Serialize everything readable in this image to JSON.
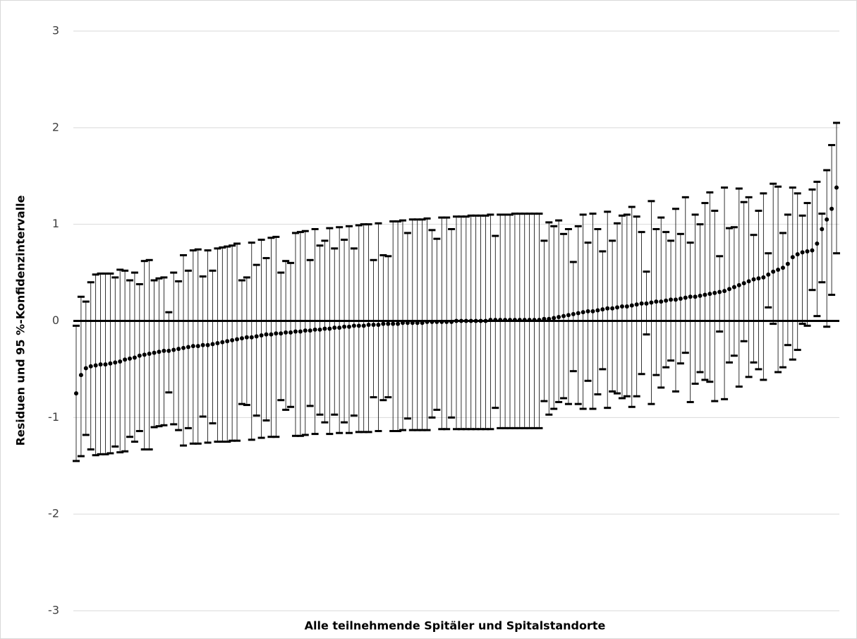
{
  "chart_data": {
    "type": "errorbar",
    "y_axis_label": "Residuen und 95 %-Konfidenzintervalle",
    "x_axis_label": "Alle teilnehmende Spitäler und Spitalstandorte",
    "ylim": [
      -3,
      3
    ],
    "yticks": [
      -3,
      -2,
      -1,
      0,
      1,
      2,
      3
    ],
    "grid": true,
    "color": "#000000",
    "grid_color": "#d9d9d9",
    "values": [
      -0.75,
      -0.56,
      -0.49,
      -0.47,
      -0.46,
      -0.45,
      -0.45,
      -0.44,
      -0.43,
      -0.42,
      -0.4,
      -0.39,
      -0.38,
      -0.36,
      -0.35,
      -0.34,
      -0.33,
      -0.32,
      -0.31,
      -0.31,
      -0.3,
      -0.29,
      -0.28,
      -0.27,
      -0.26,
      -0.26,
      -0.25,
      -0.25,
      -0.24,
      -0.23,
      -0.22,
      -0.21,
      -0.2,
      -0.19,
      -0.18,
      -0.17,
      -0.17,
      -0.16,
      -0.15,
      -0.14,
      -0.14,
      -0.13,
      -0.13,
      -0.12,
      -0.12,
      -0.11,
      -0.11,
      -0.1,
      -0.1,
      -0.09,
      -0.09,
      -0.08,
      -0.08,
      -0.07,
      -0.07,
      -0.06,
      -0.06,
      -0.05,
      -0.05,
      -0.05,
      -0.04,
      -0.04,
      -0.04,
      -0.03,
      -0.03,
      -0.03,
      -0.03,
      -0.02,
      -0.02,
      -0.02,
      -0.02,
      -0.02,
      -0.01,
      -0.01,
      -0.01,
      -0.01,
      -0.01,
      -0.01,
      0.0,
      0.0,
      0.0,
      0.0,
      0.0,
      0.0,
      0.0,
      0.01,
      0.01,
      0.01,
      0.01,
      0.01,
      0.01,
      0.01,
      0.01,
      0.01,
      0.01,
      0.01,
      0.02,
      0.02,
      0.03,
      0.04,
      0.05,
      0.06,
      0.07,
      0.08,
      0.09,
      0.1,
      0.1,
      0.11,
      0.12,
      0.13,
      0.13,
      0.14,
      0.15,
      0.15,
      0.16,
      0.17,
      0.18,
      0.18,
      0.19,
      0.2,
      0.2,
      0.21,
      0.22,
      0.22,
      0.23,
      0.24,
      0.25,
      0.25,
      0.26,
      0.27,
      0.28,
      0.29,
      0.3,
      0.31,
      0.33,
      0.35,
      0.37,
      0.39,
      0.41,
      0.43,
      0.44,
      0.45,
      0.48,
      0.51,
      0.53,
      0.55,
      0.59,
      0.66,
      0.69,
      0.71,
      0.72,
      0.73,
      0.8,
      0.95,
      1.05,
      1.16,
      1.38
    ],
    "lower": [
      -1.45,
      -1.4,
      -1.18,
      -1.33,
      -1.39,
      -1.38,
      -1.38,
      -1.37,
      -1.3,
      -1.36,
      -1.35,
      -1.2,
      -1.25,
      -1.14,
      -1.33,
      -1.33,
      -1.1,
      -1.09,
      -1.08,
      -0.74,
      -1.07,
      -1.13,
      -1.29,
      -1.11,
      -1.27,
      -1.27,
      -0.99,
      -1.26,
      -1.06,
      -1.25,
      -1.25,
      -1.25,
      -1.24,
      -1.24,
      -0.86,
      -0.87,
      -1.23,
      -0.98,
      -1.21,
      -1.03,
      -1.2,
      -1.2,
      -0.82,
      -0.92,
      -0.89,
      -1.19,
      -1.19,
      -1.18,
      -0.88,
      -1.17,
      -0.97,
      -1.05,
      -1.17,
      -0.97,
      -1.16,
      -1.05,
      -1.16,
      -0.98,
      -1.15,
      -1.15,
      -1.15,
      -0.79,
      -1.14,
      -0.82,
      -0.79,
      -1.14,
      -1.14,
      -1.13,
      -1.01,
      -1.13,
      -1.13,
      -1.13,
      -1.13,
      -1.0,
      -0.92,
      -1.12,
      -1.12,
      -1.0,
      -1.12,
      -1.12,
      -1.12,
      -1.12,
      -1.12,
      -1.12,
      -1.12,
      -1.12,
      -0.9,
      -1.11,
      -1.11,
      -1.11,
      -1.11,
      -1.11,
      -1.11,
      -1.11,
      -1.11,
      -1.11,
      -0.83,
      -0.97,
      -0.91,
      -0.84,
      -0.8,
      -0.86,
      -0.52,
      -0.86,
      -0.91,
      -0.62,
      -0.91,
      -0.76,
      -0.5,
      -0.9,
      -0.73,
      -0.75,
      -0.8,
      -0.78,
      -0.89,
      -0.78,
      -0.55,
      -0.14,
      -0.86,
      -0.56,
      -0.69,
      -0.48,
      -0.41,
      -0.73,
      -0.44,
      -0.33,
      -0.84,
      -0.65,
      -0.53,
      -0.61,
      -0.63,
      -0.83,
      -0.11,
      -0.81,
      -0.43,
      -0.36,
      -0.68,
      -0.21,
      -0.58,
      -0.43,
      -0.5,
      -0.61,
      0.14,
      -0.03,
      -0.53,
      -0.48,
      -0.25,
      -0.4,
      -0.3,
      -0.03,
      -0.05,
      0.32,
      0.05,
      0.4,
      -0.06,
      0.27,
      0.7
    ],
    "upper": [
      -0.05,
      0.25,
      0.2,
      0.4,
      0.48,
      0.49,
      0.49,
      0.49,
      0.45,
      0.53,
      0.52,
      0.42,
      0.5,
      0.38,
      0.62,
      0.63,
      0.42,
      0.44,
      0.45,
      0.09,
      0.5,
      0.41,
      0.68,
      0.52,
      0.73,
      0.74,
      0.46,
      0.73,
      0.52,
      0.75,
      0.76,
      0.77,
      0.78,
      0.8,
      0.42,
      0.45,
      0.81,
      0.58,
      0.84,
      0.65,
      0.86,
      0.87,
      0.5,
      0.62,
      0.6,
      0.91,
      0.92,
      0.93,
      0.63,
      0.95,
      0.78,
      0.83,
      0.96,
      0.75,
      0.97,
      0.84,
      0.98,
      0.75,
      0.99,
      1.0,
      1.0,
      0.63,
      1.01,
      0.68,
      0.67,
      1.03,
      1.03,
      1.04,
      0.91,
      1.05,
      1.05,
      1.05,
      1.06,
      0.94,
      0.85,
      1.07,
      1.07,
      0.95,
      1.08,
      1.08,
      1.08,
      1.09,
      1.09,
      1.09,
      1.09,
      1.1,
      0.88,
      1.1,
      1.1,
      1.1,
      1.11,
      1.11,
      1.11,
      1.11,
      1.11,
      1.11,
      0.83,
      1.02,
      0.98,
      1.04,
      0.9,
      0.95,
      0.61,
      0.98,
      1.1,
      0.81,
      1.11,
      0.95,
      0.72,
      1.13,
      0.83,
      1.01,
      1.09,
      1.1,
      1.18,
      1.08,
      0.92,
      0.51,
      1.24,
      0.95,
      1.07,
      0.92,
      0.83,
      1.16,
      0.9,
      1.28,
      0.81,
      1.1,
      1.0,
      1.22,
      1.33,
      1.14,
      0.67,
      1.38,
      0.96,
      0.97,
      1.37,
      1.23,
      1.28,
      0.89,
      1.14,
      1.32,
      0.7,
      1.42,
      1.39,
      0.91,
      1.1,
      1.38,
      1.32,
      1.09,
      1.22,
      1.36,
      1.44,
      1.11,
      1.56,
      1.82,
      2.05
    ]
  }
}
